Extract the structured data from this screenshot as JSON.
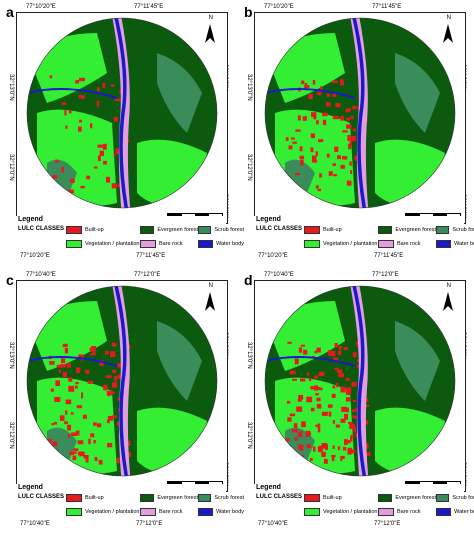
{
  "panels": [
    {
      "letter": "a",
      "coord_top": [
        "77°10'20\"E",
        "77°11'45\"E"
      ],
      "coord_bottom": [
        "77°10'20\"E",
        "77°11'45\"E"
      ],
      "coord_left": [
        "32°13'0\"N",
        "32°12'0\"N"
      ],
      "coord_right": [
        "32°13'0\"N",
        "32°12'0\"N"
      ],
      "builtup_extent": 0.18
    },
    {
      "letter": "b",
      "coord_top": [
        "77°10'20\"E",
        "77°11'45\"E"
      ],
      "coord_bottom": [
        "77°10'20\"E",
        "77°11'45\"E"
      ],
      "coord_left": [
        "32°13'0\"N",
        "32°12'0\"N"
      ],
      "coord_right": [
        "32°13'0\"N",
        "32°12'0\"N"
      ],
      "builtup_extent": 0.28
    },
    {
      "letter": "c",
      "coord_top": [
        "77°10'40\"E",
        "77°12'0\"E"
      ],
      "coord_bottom": [
        "77°10'40\"E",
        "77°12'0\"E"
      ],
      "coord_left": [
        "32°13'0\"N",
        "32°12'0\"N"
      ],
      "coord_right": [
        "32°13'0\"N",
        "32°12'0\"N"
      ],
      "builtup_extent": 0.36
    },
    {
      "letter": "d",
      "coord_top": [
        "77°10'40\"E",
        "77°12'0\"E"
      ],
      "coord_bottom": [
        "77°10'40\"E",
        "77°12'0\"E"
      ],
      "coord_left": [
        "32°13'0\"N",
        "32°12'0\"N"
      ],
      "coord_right": [
        "32°13'0\"N",
        "32°12'0\"N"
      ],
      "builtup_extent": 0.5
    }
  ],
  "north_label": "N",
  "scale": {
    "labels": [
      "0",
      "0.5",
      "1"
    ],
    "unit": "km"
  },
  "legend": {
    "title": "Legend",
    "subtitle": "LULC CLASSES",
    "items": [
      {
        "label": "Built-up",
        "color": "#e8191c"
      },
      {
        "label": "Evergreen forest",
        "color": "#0b5a0e"
      },
      {
        "label": "Scrub forest",
        "color": "#3a8c5a"
      },
      {
        "label": "Vegetation / plantation",
        "color": "#33ee33"
      },
      {
        "label": "Bare rock",
        "color": "#e49ee0"
      },
      {
        "label": "Water body",
        "color": "#1a1acc"
      }
    ]
  }
}
